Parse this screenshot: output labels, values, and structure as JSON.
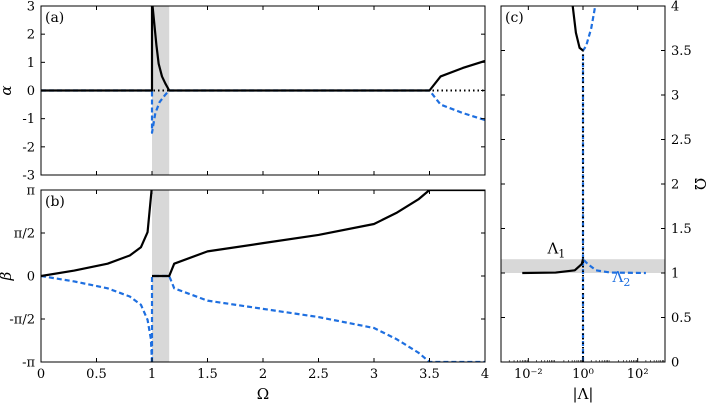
{
  "colors": {
    "black": "#000000",
    "blue": "#1e6fe0",
    "shade": "#d8d8d8"
  },
  "chart_data": [
    {
      "type": "line",
      "panel_label": "(a)",
      "xlabel": "",
      "ylabel": "α",
      "xlim": [
        0,
        4
      ],
      "ylim": [
        -3,
        3
      ],
      "xticks": [
        0,
        0.5,
        1,
        1.5,
        2,
        2.5,
        3,
        3.5,
        4
      ],
      "xtick_labels": [
        "",
        "",
        "",
        "",
        "",
        "",
        "",
        "",
        ""
      ],
      "yticks": [
        -3,
        -2,
        -1,
        0,
        1,
        2,
        3
      ],
      "ytick_labels": [
        "-3",
        "-2",
        "-1",
        "0",
        "1",
        "2",
        "3"
      ],
      "shaded_band_x": [
        1.0,
        1.155
      ],
      "series": [
        {
          "style": "black-solid",
          "points": [
            [
              0,
              0
            ],
            [
              1.0,
              0
            ],
            [
              1.0,
              3.2
            ],
            [
              1.02,
              2.4
            ],
            [
              1.04,
              1.6
            ],
            [
              1.06,
              0.95
            ],
            [
              1.09,
              0.5
            ],
            [
              1.12,
              0.25
            ],
            [
              1.155,
              0
            ],
            [
              3.5,
              0
            ],
            [
              3.6,
              0.5
            ],
            [
              3.8,
              0.8
            ],
            [
              4.0,
              1.05
            ]
          ]
        },
        {
          "style": "blue-dashed",
          "points": [
            [
              0,
              0
            ],
            [
              1.0,
              0
            ],
            [
              1.0,
              -1.5
            ],
            [
              1.03,
              -0.8
            ],
            [
              1.07,
              -0.4
            ],
            [
              1.12,
              -0.15
            ],
            [
              1.155,
              0
            ],
            [
              3.5,
              0
            ],
            [
              3.6,
              -0.5
            ],
            [
              3.8,
              -0.8
            ],
            [
              4.0,
              -1.05
            ]
          ]
        },
        {
          "style": "black-dotted",
          "points": [
            [
              0,
              0
            ],
            [
              4.0,
              0
            ]
          ]
        }
      ]
    },
    {
      "type": "line",
      "panel_label": "(b)",
      "xlabel": "Ω",
      "ylabel": "β",
      "xlim": [
        0,
        4
      ],
      "ylim": [
        -3.14159,
        3.14159
      ],
      "xticks": [
        0,
        0.5,
        1,
        1.5,
        2,
        2.5,
        3,
        3.5,
        4
      ],
      "xtick_labels": [
        "0",
        "0.5",
        "1",
        "1.5",
        "2",
        "2.5",
        "3",
        "3.5",
        "4"
      ],
      "yticks": [
        -3.14159,
        -1.5708,
        0,
        1.5708,
        3.14159
      ],
      "ytick_labels": [
        "-π",
        "-π/2",
        "0",
        "π/2",
        "π"
      ],
      "shaded_band_x": [
        1.0,
        1.155
      ],
      "series": [
        {
          "style": "black-solid",
          "points": [
            [
              0,
              0
            ],
            [
              0.3,
              0.2
            ],
            [
              0.6,
              0.45
            ],
            [
              0.8,
              0.75
            ],
            [
              0.9,
              1.05
            ],
            [
              0.96,
              1.6
            ],
            [
              1.0,
              3.3
            ]
          ]
        },
        {
          "style": "black-solid",
          "points": [
            [
              1.0,
              0
            ],
            [
              1.155,
              0
            ],
            [
              1.2,
              0.45
            ],
            [
              1.5,
              0.9
            ],
            [
              2.0,
              1.2
            ],
            [
              2.5,
              1.5
            ],
            [
              3.0,
              1.9
            ],
            [
              3.2,
              2.3
            ],
            [
              3.4,
              2.8
            ],
            [
              3.5,
              3.14159
            ],
            [
              4.0,
              3.14159
            ]
          ]
        },
        {
          "style": "blue-dashed",
          "points": [
            [
              0,
              0
            ],
            [
              0.3,
              -0.2
            ],
            [
              0.6,
              -0.45
            ],
            [
              0.8,
              -0.75
            ],
            [
              0.9,
              -1.05
            ],
            [
              0.96,
              -1.6
            ],
            [
              0.99,
              -2.3
            ],
            [
              1.0,
              -3.14159
            ]
          ]
        },
        {
          "style": "blue-dashed",
          "points": [
            [
              1.0,
              -3.14159
            ],
            [
              1.0,
              0
            ],
            [
              1.155,
              0
            ],
            [
              1.2,
              -0.45
            ],
            [
              1.5,
              -0.9
            ],
            [
              2.0,
              -1.2
            ],
            [
              2.5,
              -1.5
            ],
            [
              3.0,
              -1.9
            ],
            [
              3.2,
              -2.3
            ],
            [
              3.4,
              -2.8
            ],
            [
              3.5,
              -3.14159
            ],
            [
              4.0,
              -3.14159
            ]
          ]
        }
      ]
    },
    {
      "type": "line",
      "panel_label": "(c)",
      "xlabel": "|Λ|",
      "ylabel": "Ω",
      "xscale": "log",
      "xlim": [
        0.001,
        1000
      ],
      "ylim": [
        0,
        4
      ],
      "xticks": [
        0.01,
        1,
        100
      ],
      "xtick_labels": [
        "10⁻²",
        "10⁰",
        "10²"
      ],
      "yticks": [
        0,
        0.5,
        1,
        1.5,
        2,
        2.5,
        3,
        3.5,
        4
      ],
      "ytick_labels": [
        "0",
        "0.5",
        "1",
        "1.5",
        "2",
        "2.5",
        "3",
        "3.5",
        "4"
      ],
      "shaded_band_y": [
        1.0,
        1.155
      ],
      "annotations": [
        {
          "text": "Λ",
          "sub": "1",
          "color": "black",
          "x": 0.05,
          "y": 1.22
        },
        {
          "text": "Λ",
          "sub": "2",
          "color": "blue",
          "x": 12,
          "y": 0.9
        }
      ],
      "series": [
        {
          "style": "black-solid",
          "points": [
            [
              0.006,
              1.0
            ],
            [
              0.1,
              1.005
            ],
            [
              0.5,
              1.03
            ],
            [
              0.9,
              1.1
            ],
            [
              1.0,
              1.155
            ]
          ]
        },
        {
          "style": "black-solid",
          "points": [
            [
              0.42,
              4.0
            ],
            [
              0.55,
              3.7
            ],
            [
              0.75,
              3.53
            ],
            [
              1.0,
              3.5
            ]
          ]
        },
        {
          "style": "blue-dashed",
          "points": [
            [
              1.0,
              0
            ],
            [
              1.0,
              1.155
            ],
            [
              1.5,
              1.1
            ],
            [
              3,
              1.03
            ],
            [
              10,
              1.005
            ],
            [
              200,
              1.0
            ]
          ]
        },
        {
          "style": "blue-dashed",
          "points": [
            [
              1.0,
              1.155
            ],
            [
              1.0,
              3.5
            ],
            [
              1.3,
              3.55
            ],
            [
              2.0,
              3.75
            ],
            [
              2.8,
              4.0
            ]
          ]
        },
        {
          "style": "black-dotted",
          "points": [
            [
              1.0,
              0
            ],
            [
              1.0,
              3.5
            ]
          ]
        }
      ]
    }
  ]
}
